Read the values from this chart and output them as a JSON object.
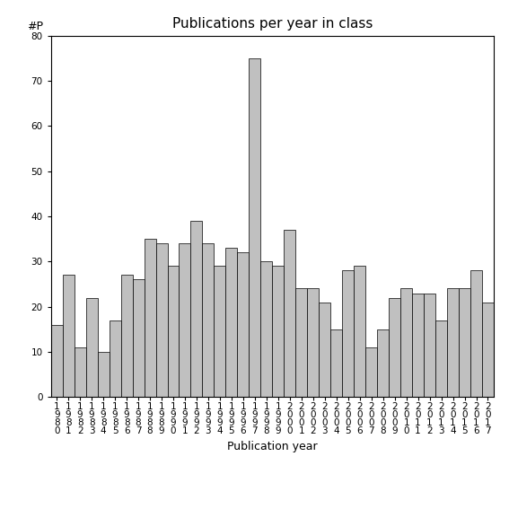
{
  "title": "Publications per year in class",
  "xlabel": "Publication year",
  "ylabel": "#P",
  "years": [
    1980,
    1981,
    1982,
    1983,
    1984,
    1985,
    1986,
    1987,
    1988,
    1989,
    1990,
    1991,
    1992,
    1993,
    1994,
    1995,
    1996,
    1997,
    1998,
    1999,
    2000,
    2001,
    2002,
    2003,
    2004,
    2005,
    2006,
    2007,
    2008,
    2009,
    2010,
    2011,
    2012,
    2013,
    2014,
    2015,
    2016,
    2017
  ],
  "values": [
    16,
    27,
    11,
    22,
    10,
    17,
    27,
    26,
    35,
    34,
    29,
    34,
    39,
    34,
    29,
    33,
    32,
    75,
    30,
    29,
    37,
    24,
    24,
    21,
    15,
    28,
    29,
    11,
    15,
    22,
    24,
    23,
    23,
    17,
    24,
    24,
    28,
    21
  ],
  "bar_color": "#c0c0c0",
  "bar_edge_color": "#000000",
  "bar_edge_width": 0.5,
  "ylim": [
    0,
    80
  ],
  "yticks": [
    0,
    10,
    20,
    30,
    40,
    50,
    60,
    70,
    80
  ],
  "background_color": "#ffffff",
  "title_fontsize": 11,
  "axis_label_fontsize": 9,
  "tick_label_fontsize": 7.5
}
